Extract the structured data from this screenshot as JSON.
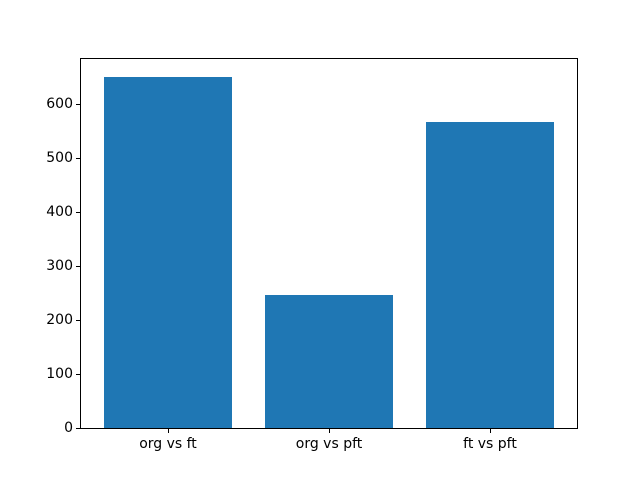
{
  "chart_data": {
    "type": "bar",
    "categories": [
      "org vs ft",
      "org vs pft",
      "ft vs pft"
    ],
    "values": [
      651,
      246,
      568
    ],
    "title": "",
    "xlabel": "",
    "ylabel": "",
    "ylim": [
      0,
      684
    ],
    "yticks": [
      0,
      100,
      200,
      300,
      400,
      500,
      600
    ],
    "xlim": [
      -0.54,
      2.54
    ],
    "bar_width": 0.8,
    "grid": false,
    "legend": false,
    "colors": {
      "bar": "#1f77b4",
      "spine": "#000000",
      "tick_text": "#000000",
      "background": "#ffffff"
    }
  }
}
